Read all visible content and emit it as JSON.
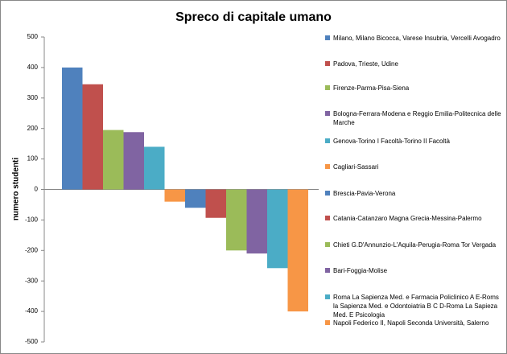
{
  "chart_data": {
    "type": "bar",
    "title": "Spreco di capitale umano",
    "y_label": "numero studenti",
    "ylim": [
      -500,
      500
    ],
    "yticks": [
      -500,
      -400,
      -300,
      -200,
      -100,
      0,
      100,
      200,
      300,
      400,
      500
    ],
    "series": [
      {
        "name": "Milano, Milano Bicocca, Varese Insubria, Vercelli Avogadro",
        "color": "#4f81bd",
        "values": [
          400
        ]
      },
      {
        "name": "Padova, Trieste, Udine",
        "color": "#c0504d",
        "values": [
          345
        ]
      },
      {
        "name": "Firenze-Parma-Pisa-Siena",
        "color": "#9bbb59",
        "values": [
          195
        ]
      },
      {
        "name": "Bologna-Ferrara-Modena e Reggio Emilia-Politecnica delle Marche",
        "color": "#8064a2",
        "values": [
          188
        ]
      },
      {
        "name": "Genova-Torino I Facoltà-Torino II Facoltà",
        "color": "#4bacc6",
        "values": [
          140
        ]
      },
      {
        "name": "Cagliari-Sassari",
        "color": "#f79646",
        "values": [
          -40
        ]
      },
      {
        "name": "Brescia-Pavia-Verona",
        "color": "#4f81bd",
        "values": [
          -60
        ]
      },
      {
        "name": "Catania-Catanzaro Magna Grecia-Messina-Palermo",
        "color": "#c0504d",
        "values": [
          -93
        ]
      },
      {
        "name": "Chieti G.D'Annunzio-L'Aquila-Perugia-Roma Tor Vergada",
        "color": "#9bbb59",
        "values": [
          -200
        ]
      },
      {
        "name": "Bari-Foggia-Molise",
        "color": "#8064a2",
        "values": [
          -210
        ]
      },
      {
        "name": "Roma La Sapienza Med. e Farmacia Policlinico A E-Roms la Sapienza Med. e Odontoiatria B C D-Roma La Sapieza Med. E Psicologia",
        "color": "#4bacc6",
        "values": [
          -258
        ]
      },
      {
        "name": "Napoli Federico II, Napoli Seconda Università, Salerno",
        "color": "#f79646",
        "values": [
          -400
        ]
      }
    ]
  }
}
